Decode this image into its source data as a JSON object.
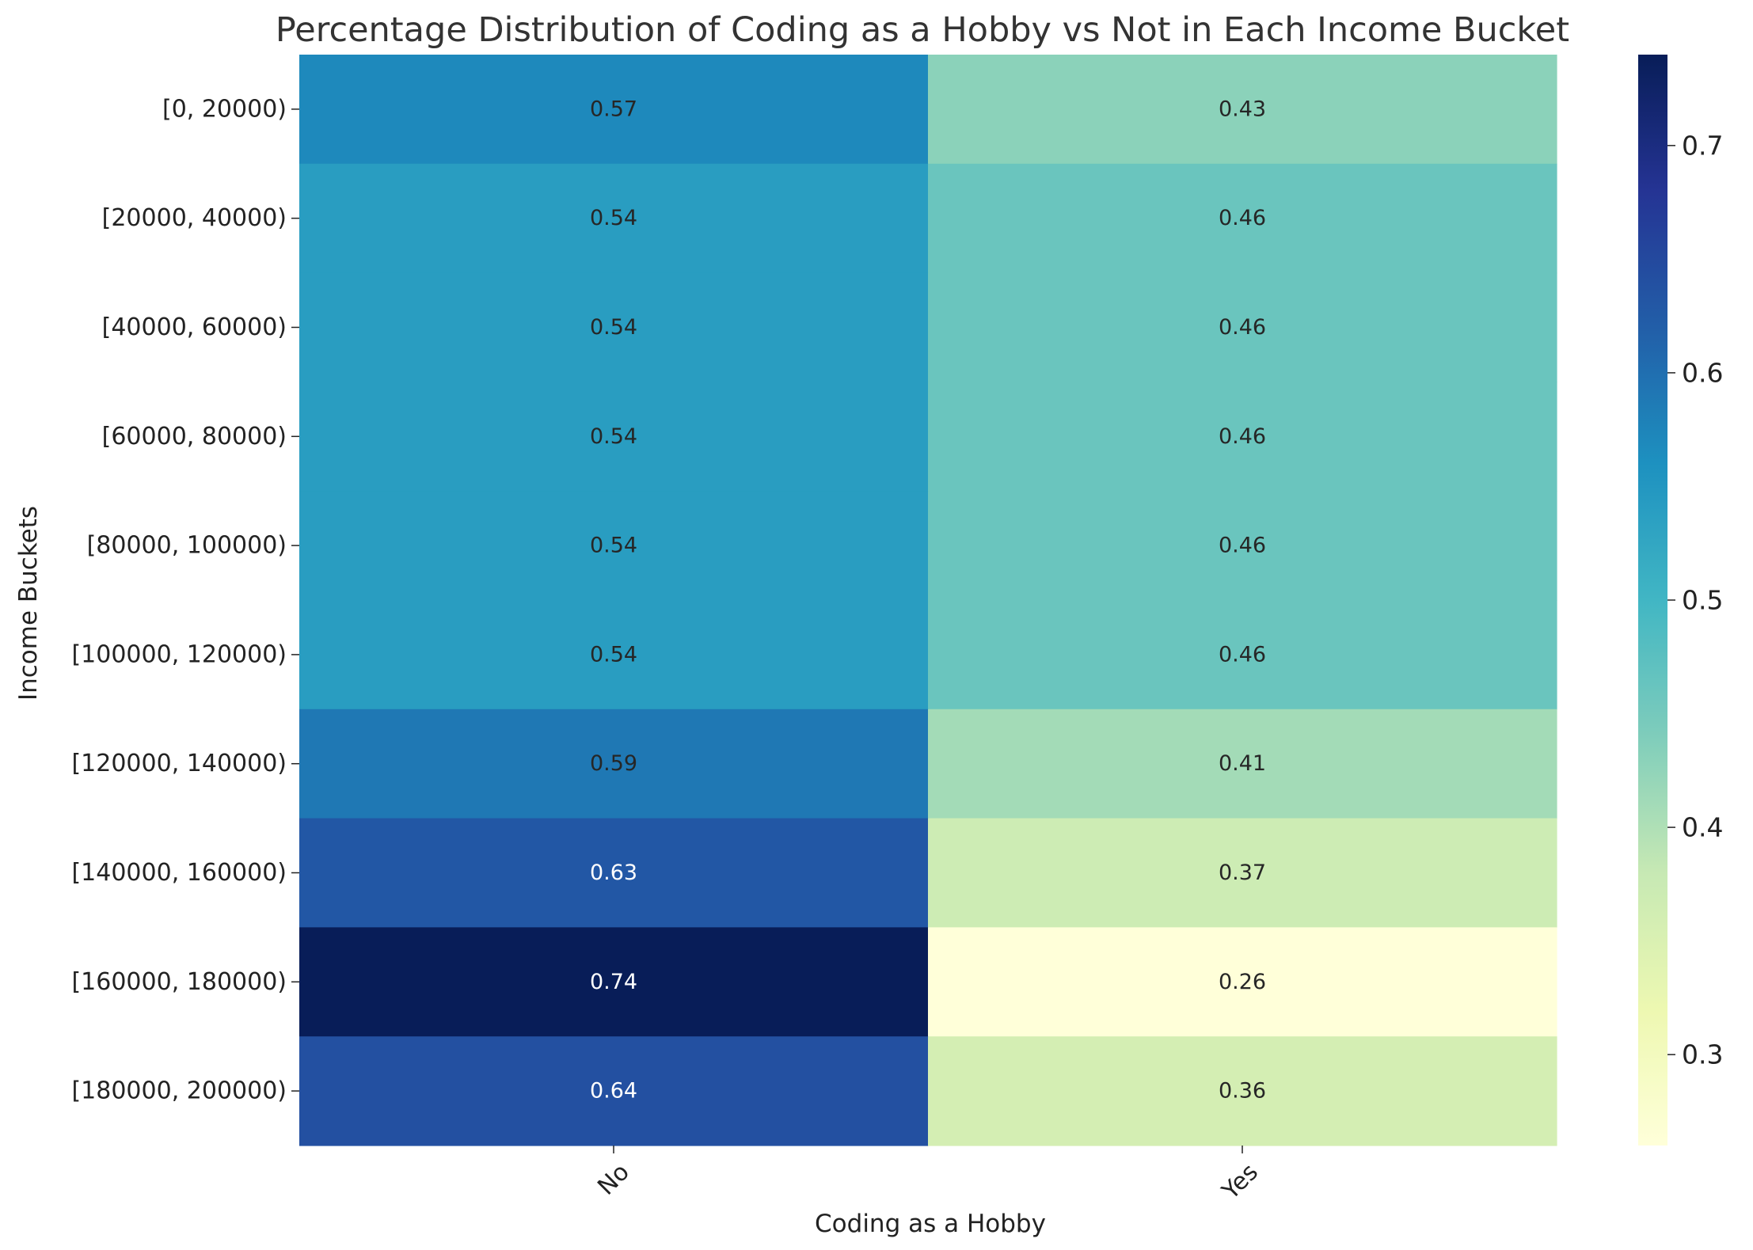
{
  "chart_data": {
    "type": "heatmap",
    "title": "Percentage Distribution of Coding as a Hobby vs Not in Each Income Bucket",
    "xlabel": "Coding as a Hobby",
    "ylabel": "Income Buckets",
    "columns": [
      "No",
      "Yes"
    ],
    "rows": [
      "[0, 20000)",
      "[20000, 40000)",
      "[40000, 60000)",
      "[60000, 80000)",
      "[80000, 100000)",
      "[100000, 120000)",
      "[120000, 140000)",
      "[140000, 160000)",
      "[160000, 180000)",
      "[180000, 200000)"
    ],
    "values": [
      [
        0.57,
        0.43
      ],
      [
        0.54,
        0.46
      ],
      [
        0.54,
        0.46
      ],
      [
        0.54,
        0.46
      ],
      [
        0.54,
        0.46
      ],
      [
        0.54,
        0.46
      ],
      [
        0.59,
        0.41
      ],
      [
        0.63,
        0.37
      ],
      [
        0.74,
        0.26
      ],
      [
        0.64,
        0.36
      ]
    ],
    "colormap": "YlGnBu",
    "colorbar": {
      "range": [
        0.26,
        0.74
      ],
      "ticks": [
        0.3,
        0.4,
        0.5,
        0.6,
        0.7
      ],
      "tick_labels": [
        "0.3",
        "0.4",
        "0.5",
        "0.6",
        "0.7"
      ]
    },
    "annotations": true,
    "legend": "colorbar-right"
  }
}
